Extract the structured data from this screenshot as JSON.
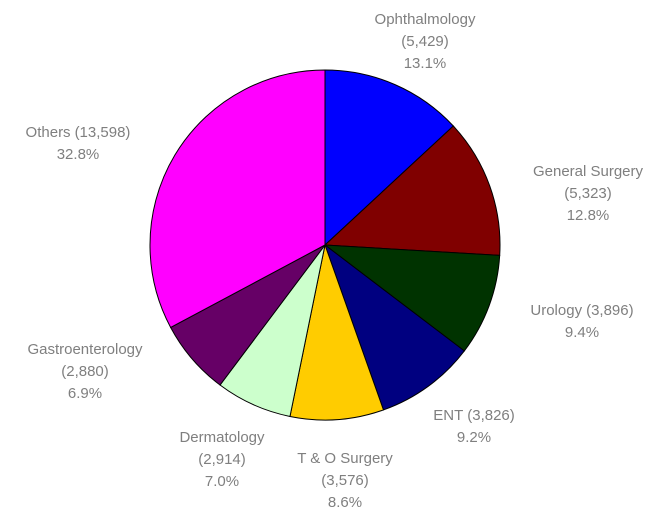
{
  "chart_data": {
    "type": "pie",
    "categories": [
      "Ophthalmology",
      "General Surgery",
      "Urology",
      "ENT",
      "T & O Surgery",
      "Dermatology",
      "Gastroenterology",
      "Others"
    ],
    "values": [
      5429,
      5323,
      3896,
      3826,
      3576,
      2914,
      2880,
      13598
    ],
    "value_labels": [
      "(5,429)",
      "(5,323)",
      "(3,896)",
      "(3,826)",
      "(3,576)",
      "(2,914)",
      "(2,880)",
      "(13,598)"
    ],
    "percents": [
      13.1,
      12.8,
      9.4,
      9.2,
      8.6,
      7.0,
      6.9,
      32.8
    ],
    "percent_labels": [
      "13.1%",
      "12.8%",
      "9.4%",
      "9.2%",
      "8.6%",
      "7.0%",
      "6.9%",
      "32.8%"
    ],
    "colors": [
      "#0000ff",
      "#800000",
      "#003300",
      "#000080",
      "#ffcc00",
      "#ccffcc",
      "#660066",
      "#ff00ff"
    ]
  }
}
